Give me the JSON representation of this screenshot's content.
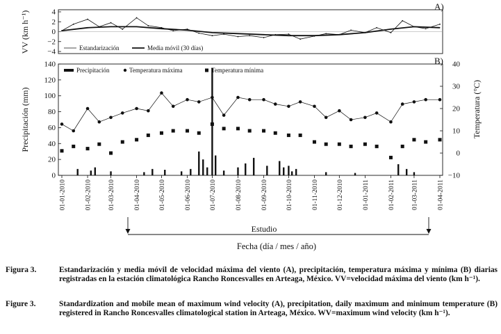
{
  "figure": {
    "panel_a_tag": "A)",
    "panel_b_tag": "B)",
    "study_label": "Estudio",
    "xaxis_title": "Fecha (día / mes / año)"
  },
  "captions": {
    "es_label": "Figura 3.",
    "es_text": "Estandarización y media móvil de velocidad máxima del viento (A), precipitación, temperatura máxima y mínima (B) diarias registradas en la estación climatológica Rancho Roncesvalles en Arteaga, México. VV=velocidad máxima del viento (km h⁻¹).",
    "en_label": "Figure 3.",
    "en_text": "Standardization and mobile mean of maximum wind velocity (A), precipitation, daily maximum and minimum temperature (B) registered in Rancho Roncesvalles climatological station in Arteaga, México. WV=maximum wind velocity (km h⁻¹)."
  },
  "chart_data": [
    {
      "type": "line",
      "panel": "A",
      "ylabel": "VV (km h⁻¹)",
      "ylim": [
        -4,
        4
      ],
      "yticks": [
        "4",
        "2",
        "0",
        "−2",
        "−4"
      ],
      "legend": [
        "Estandarización",
        "Media móvil (30 días)"
      ],
      "legend_position": "bottom-left",
      "x_range": [
        "01-01-2010",
        "01-04-2011"
      ],
      "series": [
        {
          "name": "Estandarización",
          "x": [
            "01-01-2010",
            "15-01-2010",
            "01-02-2010",
            "15-02-2010",
            "01-03-2010",
            "15-03-2010",
            "01-04-2010",
            "15-04-2010",
            "01-05-2010",
            "15-05-2010",
            "01-06-2010",
            "15-06-2010",
            "01-07-2010",
            "15-07-2010",
            "01-08-2010",
            "15-08-2010",
            "01-09-2010",
            "15-09-2010",
            "01-10-2010",
            "15-10-2010",
            "01-11-2010",
            "15-11-2010",
            "01-12-2010",
            "15-12-2010",
            "01-01-2011",
            "15-01-2011",
            "01-02-2011",
            "15-02-2011",
            "01-03-2011",
            "15-03-2011",
            "01-04-2011"
          ],
          "values": [
            0.2,
            1.5,
            2.5,
            1.0,
            1.8,
            0.5,
            2.8,
            1.2,
            0.8,
            0.2,
            0.5,
            -0.3,
            -0.8,
            -0.5,
            -1.0,
            -0.8,
            -1.2,
            -0.6,
            -0.5,
            -1.5,
            -0.9,
            -0.4,
            -0.6,
            0.3,
            -0.2,
            0.8,
            -0.2,
            2.2,
            1.0,
            0.6,
            1.5
          ]
        },
        {
          "name": "Media móvil (30 días)",
          "x": [
            "01-01-2010",
            "01-02-2010",
            "01-03-2010",
            "01-04-2010",
            "01-05-2010",
            "01-06-2010",
            "01-07-2010",
            "01-08-2010",
            "01-09-2010",
            "01-10-2010",
            "01-11-2010",
            "01-12-2010",
            "01-01-2011",
            "01-02-2011",
            "01-03-2011",
            "01-04-2011"
          ],
          "values": [
            0.2,
            0.8,
            1.0,
            1.0,
            0.6,
            0.3,
            -0.2,
            -0.4,
            -0.6,
            -0.8,
            -0.8,
            -0.6,
            -0.2,
            0.5,
            1.0,
            0.8
          ]
        }
      ]
    },
    {
      "type": "bar",
      "panel": "B",
      "ylabel": "Precipitación (mm)",
      "ylim": [
        0,
        140
      ],
      "yticks": [
        "140",
        "120",
        "100",
        "80",
        "60",
        "40",
        "20",
        "0"
      ],
      "y2label": "Temperatura (°C)",
      "y2lim": [
        -10,
        40
      ],
      "y2ticks": [
        "40",
        "30",
        "20",
        "10",
        "0",
        "−10"
      ],
      "xaxis_label": "Fecha (día / mes / año)",
      "categories": [
        "01-01-2010",
        "01-02-2010",
        "01-03-2010",
        "01-04-2010",
        "01-05-2010",
        "01-06-2010",
        "01-07-2010",
        "01-08-2010",
        "01-09-2010",
        "01-10-2010",
        "01-11-2010",
        "01-12-2010",
        "01-01-2011",
        "01-02-2011",
        "01-03-2011",
        "01-04-2011"
      ],
      "legend": [
        "Precipitación",
        "Temperatura máxima",
        "Temperatura mínima"
      ],
      "legend_position": "top",
      "annotation": "Estudio: 15-03-2010 a 15-03-2011",
      "series": [
        {
          "name": "Precipitación",
          "x": [
            "20-01-2010",
            "05-02-2010",
            "10-02-2010",
            "01-03-2010",
            "10-04-2010",
            "20-04-2010",
            "05-05-2010",
            "25-05-2010",
            "05-06-2010",
            "15-06-2010",
            "20-06-2010",
            "25-06-2010",
            "01-07-2010",
            "05-07-2010",
            "15-07-2010",
            "01-08-2010",
            "10-08-2010",
            "20-08-2010",
            "05-09-2010",
            "20-09-2010",
            "25-09-2010",
            "01-10-2010",
            "05-10-2010",
            "10-10-2010",
            "15-11-2010",
            "20-12-2010",
            "10-02-2011",
            "20-02-2011",
            "01-03-2011"
          ],
          "values": [
            8,
            6,
            10,
            5,
            4,
            8,
            7,
            5,
            8,
            30,
            20,
            10,
            135,
            25,
            6,
            10,
            15,
            22,
            12,
            18,
            10,
            12,
            5,
            8,
            4,
            3,
            14,
            8,
            4
          ]
        },
        {
          "name": "Temperatura máxima",
          "axis": "right",
          "x": [
            "01-01-2010",
            "15-01-2010",
            "01-02-2010",
            "15-02-2010",
            "01-03-2010",
            "15-03-2010",
            "01-04-2010",
            "15-04-2010",
            "01-05-2010",
            "15-05-2010",
            "01-06-2010",
            "15-06-2010",
            "01-07-2010",
            "15-07-2010",
            "01-08-2010",
            "15-08-2010",
            "01-09-2010",
            "15-09-2010",
            "01-10-2010",
            "15-10-2010",
            "01-11-2010",
            "15-11-2010",
            "01-12-2010",
            "15-12-2010",
            "01-01-2011",
            "15-01-2011",
            "01-02-2011",
            "15-02-2011",
            "01-03-2011",
            "15-03-2011",
            "01-04-2011"
          ],
          "values": [
            13,
            10,
            20,
            14,
            16,
            18,
            20,
            19,
            27,
            21,
            24,
            23,
            25,
            17,
            25,
            24,
            24,
            22,
            21,
            23,
            21,
            16,
            19,
            15,
            16,
            18,
            14,
            22,
            23,
            24,
            24
          ]
        },
        {
          "name": "Temperatura mínima",
          "axis": "right",
          "x": [
            "01-01-2010",
            "15-01-2010",
            "01-02-2010",
            "15-02-2010",
            "01-03-2010",
            "15-03-2010",
            "01-04-2010",
            "15-04-2010",
            "01-05-2010",
            "15-05-2010",
            "01-06-2010",
            "15-06-2010",
            "01-07-2010",
            "15-07-2010",
            "01-08-2010",
            "15-08-2010",
            "01-09-2010",
            "15-09-2010",
            "01-10-2010",
            "15-10-2010",
            "01-11-2010",
            "15-11-2010",
            "01-12-2010",
            "15-12-2010",
            "01-01-2011",
            "15-01-2011",
            "01-02-2011",
            "15-02-2011",
            "01-03-2011",
            "15-03-2011",
            "01-04-2011"
          ],
          "values": [
            1,
            3,
            2,
            4,
            0,
            5,
            6,
            8,
            9,
            10,
            10,
            9,
            13,
            11,
            11,
            10,
            10,
            9,
            8,
            8,
            5,
            4,
            4,
            3,
            4,
            3,
            -2,
            3,
            6,
            5,
            6
          ]
        }
      ]
    }
  ]
}
